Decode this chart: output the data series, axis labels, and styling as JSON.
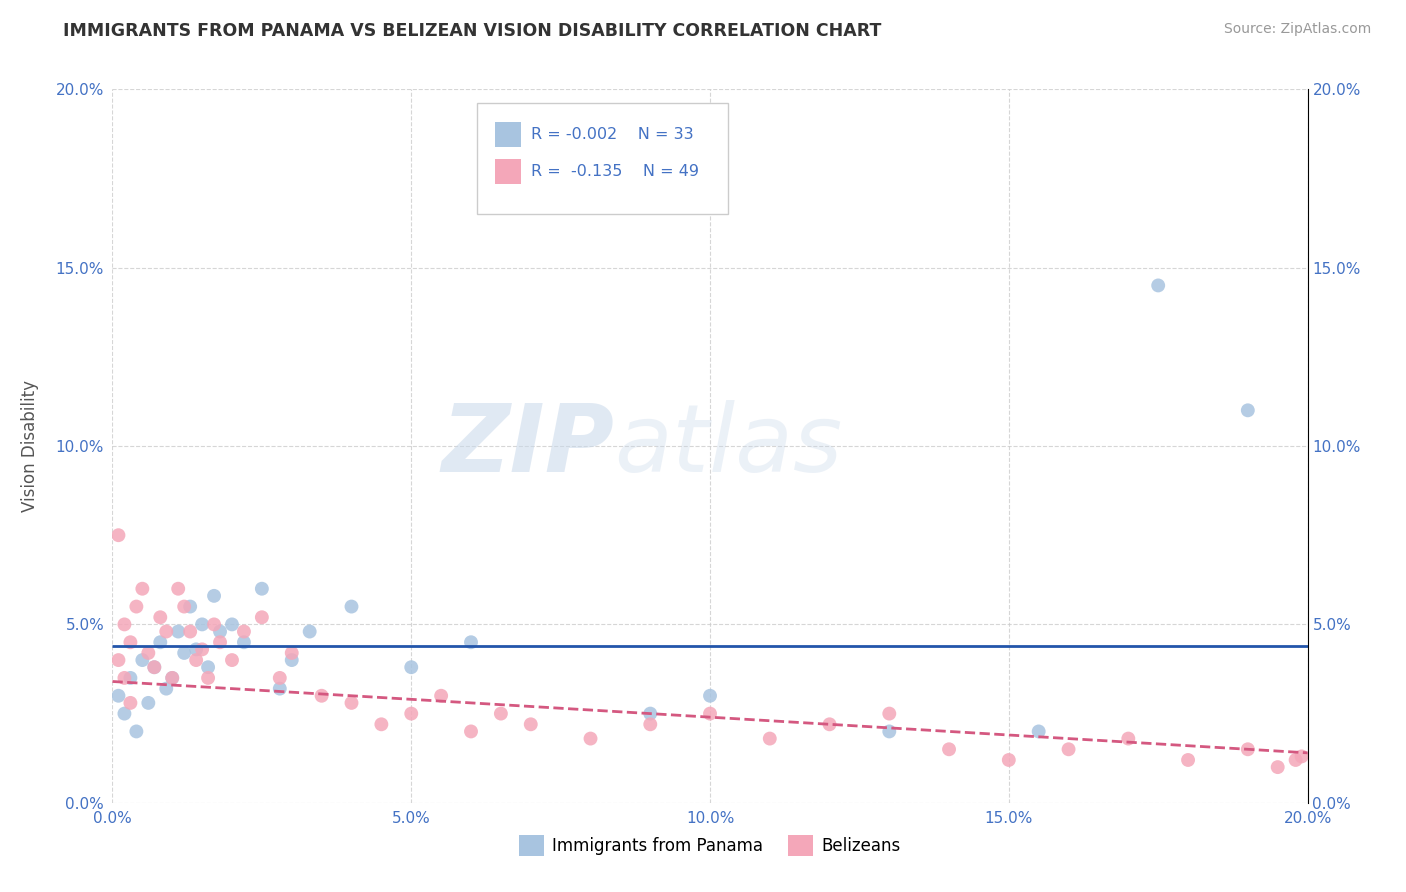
{
  "title": "IMMIGRANTS FROM PANAMA VS BELIZEAN VISION DISABILITY CORRELATION CHART",
  "source": "Source: ZipAtlas.com",
  "xlabel_label": "Immigrants from Panama",
  "xlabel_label2": "Belizeans",
  "ylabel": "Vision Disability",
  "xlim": [
    0.0,
    0.2
  ],
  "ylim": [
    0.0,
    0.2
  ],
  "xticks": [
    0.0,
    0.05,
    0.1,
    0.15,
    0.2
  ],
  "yticks": [
    0.0,
    0.05,
    0.1,
    0.15,
    0.2
  ],
  "xticklabels": [
    "0.0%",
    "5.0%",
    "10.0%",
    "15.0%",
    "20.0%"
  ],
  "yticklabels": [
    "0.0%",
    "5.0%",
    "10.0%",
    "15.0%",
    "20.0%"
  ],
  "color_panama": "#a8c4e0",
  "color_belize": "#f4a7b9",
  "color_line_panama": "#2255aa",
  "color_line_belize": "#d45880",
  "watermark_zip": "ZIP",
  "watermark_atlas": "atlas",
  "title_color": "#333333",
  "axis_label_color": "#555555",
  "tick_color": "#4472c4",
  "legend_text_color": "#4472c4",
  "panama_line_y0": 0.044,
  "panama_line_y1": 0.044,
  "belize_line_y0": 0.034,
  "belize_line_y1": 0.014,
  "panama_scatter_x": [
    0.001,
    0.002,
    0.003,
    0.004,
    0.005,
    0.006,
    0.007,
    0.008,
    0.009,
    0.01,
    0.011,
    0.012,
    0.013,
    0.014,
    0.015,
    0.016,
    0.017,
    0.018,
    0.02,
    0.022,
    0.025,
    0.028,
    0.03,
    0.033,
    0.04,
    0.05,
    0.06,
    0.09,
    0.1,
    0.13,
    0.155,
    0.175,
    0.19
  ],
  "panama_scatter_y": [
    0.03,
    0.025,
    0.035,
    0.02,
    0.04,
    0.028,
    0.038,
    0.045,
    0.032,
    0.035,
    0.048,
    0.042,
    0.055,
    0.043,
    0.05,
    0.038,
    0.058,
    0.048,
    0.05,
    0.045,
    0.06,
    0.032,
    0.04,
    0.048,
    0.055,
    0.038,
    0.045,
    0.025,
    0.03,
    0.02,
    0.02,
    0.145,
    0.11
  ],
  "belize_scatter_x": [
    0.001,
    0.001,
    0.002,
    0.002,
    0.003,
    0.003,
    0.004,
    0.005,
    0.006,
    0.007,
    0.008,
    0.009,
    0.01,
    0.011,
    0.012,
    0.013,
    0.014,
    0.015,
    0.016,
    0.017,
    0.018,
    0.02,
    0.022,
    0.025,
    0.028,
    0.03,
    0.035,
    0.04,
    0.045,
    0.05,
    0.055,
    0.06,
    0.065,
    0.07,
    0.08,
    0.09,
    0.1,
    0.11,
    0.12,
    0.13,
    0.14,
    0.15,
    0.16,
    0.17,
    0.18,
    0.19,
    0.195,
    0.198,
    0.199
  ],
  "belize_scatter_y": [
    0.075,
    0.04,
    0.05,
    0.035,
    0.045,
    0.028,
    0.055,
    0.06,
    0.042,
    0.038,
    0.052,
    0.048,
    0.035,
    0.06,
    0.055,
    0.048,
    0.04,
    0.043,
    0.035,
    0.05,
    0.045,
    0.04,
    0.048,
    0.052,
    0.035,
    0.042,
    0.03,
    0.028,
    0.022,
    0.025,
    0.03,
    0.02,
    0.025,
    0.022,
    0.018,
    0.022,
    0.025,
    0.018,
    0.022,
    0.025,
    0.015,
    0.012,
    0.015,
    0.018,
    0.012,
    0.015,
    0.01,
    0.012,
    0.013
  ]
}
